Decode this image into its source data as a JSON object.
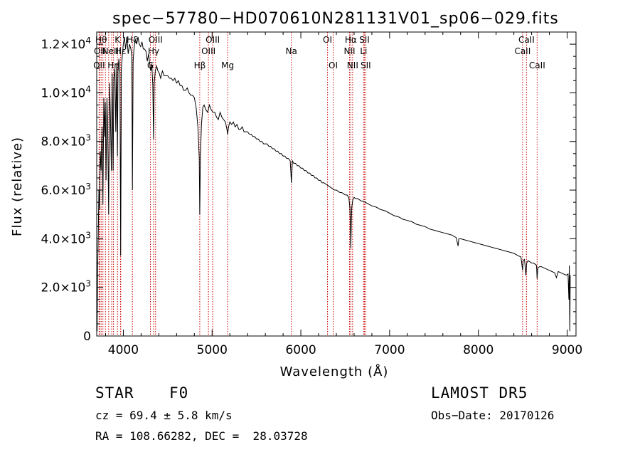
{
  "chart_data": {
    "type": "line",
    "title": "spec−57780−HD070610N281131V01_sp06−029.fits",
    "xlabel": "Wavelength (Å)",
    "ylabel": "Flux (relative)",
    "xlim": [
      3700,
      9100
    ],
    "ylim": [
      0,
      12500
    ],
    "x_ticks": [
      4000,
      5000,
      6000,
      7000,
      8000,
      9000
    ],
    "x_tick_labels": [
      "4000",
      "5000",
      "6000",
      "7000",
      "8000",
      "9000"
    ],
    "y_ticks": [
      0,
      2000,
      4000,
      6000,
      8000,
      10000,
      12000
    ],
    "y_tick_labels": [
      {
        "m": "0",
        "e": ""
      },
      {
        "m": "2.0×10",
        "e": "3"
      },
      {
        "m": "4.0×10",
        "e": "3"
      },
      {
        "m": "6.0×10",
        "e": "3"
      },
      {
        "m": "8.0×10",
        "e": "3"
      },
      {
        "m": "1.0×10",
        "e": "4"
      },
      {
        "m": "1.2×10",
        "e": "4"
      }
    ],
    "series": [
      {
        "color": "#000000",
        "points": [
          [
            3700,
            1400
          ],
          [
            3705,
            200
          ],
          [
            3710,
            2600
          ],
          [
            3718,
            4200
          ],
          [
            3725,
            6000
          ],
          [
            3732,
            5200
          ],
          [
            3740,
            7600
          ],
          [
            3750,
            6800
          ],
          [
            3760,
            8600
          ],
          [
            3770,
            5400
          ],
          [
            3780,
            9800
          ],
          [
            3790,
            8200
          ],
          [
            3797,
            9600
          ],
          [
            3805,
            6400
          ],
          [
            3815,
            9800
          ],
          [
            3825,
            8200
          ],
          [
            3835,
            5000
          ],
          [
            3845,
            10400
          ],
          [
            3855,
            9000
          ],
          [
            3865,
            6800
          ],
          [
            3875,
            10800
          ],
          [
            3885,
            6800
          ],
          [
            3893,
            10600
          ],
          [
            3905,
            11000
          ],
          [
            3915,
            8400
          ],
          [
            3925,
            11200
          ],
          [
            3933,
            7400
          ],
          [
            3940,
            11000
          ],
          [
            3950,
            11400
          ],
          [
            3962,
            10800
          ],
          [
            3970,
            3300
          ],
          [
            3978,
            11000
          ],
          [
            3990,
            11600
          ],
          [
            4000,
            12000
          ],
          [
            4012,
            12300
          ],
          [
            4025,
            11800
          ],
          [
            4040,
            12300
          ],
          [
            4055,
            11600
          ],
          [
            4070,
            12000
          ],
          [
            4085,
            11800
          ],
          [
            4096,
            11500
          ],
          [
            4102,
            6000
          ],
          [
            4110,
            11300
          ],
          [
            4120,
            11800
          ],
          [
            4135,
            12200
          ],
          [
            4150,
            12000
          ],
          [
            4165,
            12300
          ],
          [
            4180,
            12000
          ],
          [
            4195,
            11900
          ],
          [
            4210,
            12100
          ],
          [
            4225,
            11800
          ],
          [
            4240,
            11800
          ],
          [
            4255,
            11700
          ],
          [
            4270,
            11300
          ],
          [
            4285,
            11600
          ],
          [
            4300,
            11100
          ],
          [
            4310,
            10900
          ],
          [
            4320,
            11200
          ],
          [
            4332,
            10300
          ],
          [
            4340,
            8100
          ],
          [
            4348,
            10400
          ],
          [
            4360,
            10900
          ],
          [
            4375,
            11100
          ],
          [
            4390,
            10900
          ],
          [
            4405,
            10800
          ],
          [
            4420,
            10600
          ],
          [
            4440,
            10900
          ],
          [
            4460,
            10700
          ],
          [
            4480,
            10700
          ],
          [
            4500,
            10700
          ],
          [
            4520,
            10600
          ],
          [
            4540,
            10600
          ],
          [
            4560,
            10500
          ],
          [
            4580,
            10600
          ],
          [
            4600,
            10400
          ],
          [
            4620,
            10500
          ],
          [
            4640,
            10300
          ],
          [
            4660,
            10300
          ],
          [
            4680,
            10100
          ],
          [
            4700,
            10100
          ],
          [
            4720,
            10200
          ],
          [
            4740,
            10000
          ],
          [
            4760,
            9900
          ],
          [
            4780,
            9900
          ],
          [
            4800,
            9800
          ],
          [
            4820,
            9400
          ],
          [
            4840,
            8600
          ],
          [
            4855,
            7300
          ],
          [
            4861,
            5000
          ],
          [
            4868,
            7400
          ],
          [
            4880,
            8700
          ],
          [
            4895,
            9400
          ],
          [
            4910,
            9500
          ],
          [
            4930,
            9300
          ],
          [
            4950,
            9200
          ],
          [
            4970,
            9500
          ],
          [
            4990,
            9300
          ],
          [
            5010,
            9200
          ],
          [
            5030,
            9200
          ],
          [
            5050,
            9000
          ],
          [
            5070,
            8900
          ],
          [
            5090,
            9200
          ],
          [
            5110,
            9000
          ],
          [
            5130,
            8900
          ],
          [
            5150,
            8800
          ],
          [
            5167,
            8500
          ],
          [
            5175,
            8300
          ],
          [
            5185,
            8600
          ],
          [
            5200,
            8800
          ],
          [
            5220,
            8700
          ],
          [
            5240,
            8800
          ],
          [
            5260,
            8600
          ],
          [
            5280,
            8700
          ],
          [
            5300,
            8500
          ],
          [
            5320,
            8500
          ],
          [
            5340,
            8600
          ],
          [
            5360,
            8400
          ],
          [
            5380,
            8400
          ],
          [
            5400,
            8400
          ],
          [
            5420,
            8300
          ],
          [
            5440,
            8300
          ],
          [
            5460,
            8200
          ],
          [
            5480,
            8200
          ],
          [
            5500,
            8100
          ],
          [
            5520,
            8100
          ],
          [
            5540,
            8000
          ],
          [
            5560,
            8000
          ],
          [
            5580,
            7900
          ],
          [
            5600,
            7900
          ],
          [
            5620,
            7900
          ],
          [
            5640,
            7800
          ],
          [
            5660,
            7800
          ],
          [
            5680,
            7700
          ],
          [
            5700,
            7700
          ],
          [
            5720,
            7600
          ],
          [
            5740,
            7600
          ],
          [
            5760,
            7500
          ],
          [
            5780,
            7500
          ],
          [
            5800,
            7400
          ],
          [
            5820,
            7400
          ],
          [
            5840,
            7300
          ],
          [
            5860,
            7300
          ],
          [
            5880,
            7200
          ],
          [
            5888,
            6700
          ],
          [
            5893,
            6300
          ],
          [
            5898,
            6600
          ],
          [
            5905,
            7200
          ],
          [
            5920,
            7100
          ],
          [
            5940,
            7100
          ],
          [
            5960,
            7000
          ],
          [
            5980,
            7000
          ],
          [
            6000,
            6900
          ],
          [
            6020,
            6900
          ],
          [
            6040,
            6800
          ],
          [
            6060,
            6800
          ],
          [
            6080,
            6700
          ],
          [
            6100,
            6700
          ],
          [
            6120,
            6600
          ],
          [
            6140,
            6600
          ],
          [
            6160,
            6500
          ],
          [
            6180,
            6500
          ],
          [
            6200,
            6400
          ],
          [
            6220,
            6400
          ],
          [
            6240,
            6300
          ],
          [
            6260,
            6300
          ],
          [
            6280,
            6250
          ],
          [
            6300,
            6200
          ],
          [
            6320,
            6150
          ],
          [
            6340,
            6100
          ],
          [
            6360,
            6050
          ],
          [
            6380,
            6000
          ],
          [
            6400,
            6000
          ],
          [
            6420,
            5950
          ],
          [
            6440,
            5900
          ],
          [
            6460,
            5900
          ],
          [
            6480,
            5850
          ],
          [
            6500,
            5800
          ],
          [
            6520,
            5800
          ],
          [
            6540,
            5700
          ],
          [
            6552,
            5300
          ],
          [
            6558,
            4600
          ],
          [
            6563,
            3600
          ],
          [
            6568,
            4600
          ],
          [
            6574,
            5300
          ],
          [
            6585,
            5600
          ],
          [
            6600,
            5700
          ],
          [
            6620,
            5650
          ],
          [
            6640,
            5650
          ],
          [
            6660,
            5600
          ],
          [
            6680,
            5550
          ],
          [
            6700,
            5550
          ],
          [
            6750,
            5450
          ],
          [
            6800,
            5350
          ],
          [
            6850,
            5300
          ],
          [
            6900,
            5200
          ],
          [
            6950,
            5150
          ],
          [
            7000,
            5050
          ],
          [
            7050,
            4950
          ],
          [
            7100,
            4900
          ],
          [
            7150,
            4800
          ],
          [
            7200,
            4750
          ],
          [
            7250,
            4700
          ],
          [
            7300,
            4600
          ],
          [
            7350,
            4550
          ],
          [
            7400,
            4500
          ],
          [
            7450,
            4400
          ],
          [
            7500,
            4350
          ],
          [
            7550,
            4300
          ],
          [
            7600,
            4250
          ],
          [
            7650,
            4200
          ],
          [
            7700,
            4150
          ],
          [
            7750,
            4050
          ],
          [
            7772,
            3700
          ],
          [
            7780,
            4000
          ],
          [
            7800,
            4000
          ],
          [
            7850,
            3950
          ],
          [
            7900,
            3900
          ],
          [
            7950,
            3850
          ],
          [
            8000,
            3800
          ],
          [
            8050,
            3750
          ],
          [
            8100,
            3700
          ],
          [
            8150,
            3650
          ],
          [
            8200,
            3600
          ],
          [
            8250,
            3550
          ],
          [
            8300,
            3500
          ],
          [
            8350,
            3450
          ],
          [
            8400,
            3400
          ],
          [
            8450,
            3300
          ],
          [
            8480,
            3250
          ],
          [
            8498,
            2700
          ],
          [
            8505,
            3100
          ],
          [
            8520,
            3150
          ],
          [
            8535,
            2500
          ],
          [
            8545,
            3000
          ],
          [
            8560,
            3100
          ],
          [
            8580,
            3050
          ],
          [
            8600,
            3000
          ],
          [
            8620,
            3000
          ],
          [
            8640,
            2950
          ],
          [
            8655,
            2900
          ],
          [
            8662,
            2350
          ],
          [
            8670,
            2800
          ],
          [
            8690,
            2850
          ],
          [
            8710,
            2850
          ],
          [
            8740,
            2800
          ],
          [
            8770,
            2750
          ],
          [
            8800,
            2700
          ],
          [
            8830,
            2650
          ],
          [
            8860,
            2600
          ],
          [
            8880,
            2400
          ],
          [
            8900,
            2650
          ],
          [
            8930,
            2600
          ],
          [
            8960,
            2550
          ],
          [
            8990,
            2500
          ],
          [
            9010,
            2550
          ],
          [
            9020,
            1500
          ],
          [
            9025,
            2900
          ],
          [
            9030,
            200
          ],
          [
            9035,
            2500
          ]
        ]
      }
    ],
    "lines": [
      {
        "w": 3727,
        "label": "OII",
        "row": 3
      },
      {
        "w": 3734,
        "label": "OII",
        "row": 2
      },
      {
        "w": 3750,
        "label": "Hθ",
        "row": 1
      },
      {
        "w": 3770,
        "label": "",
        "row": 0
      },
      {
        "w": 3798,
        "label": "",
        "row": 0
      },
      {
        "w": 3835,
        "label": "",
        "row": 0
      },
      {
        "w": 3869,
        "label": "NeIII",
        "row": 2
      },
      {
        "w": 3889,
        "label": "Hη",
        "row": 3
      },
      {
        "w": 3934,
        "label": "K",
        "row": 1
      },
      {
        "w": 3969,
        "label": "",
        "row": 0
      },
      {
        "w": 3970,
        "label": "Hε",
        "row": 2
      },
      {
        "w": 4102,
        "label": "Hδ",
        "row": 1
      },
      {
        "w": 4305,
        "label": "G",
        "row": 3
      },
      {
        "w": 4341,
        "label": "Hγ",
        "row": 2
      },
      {
        "w": 4363,
        "label": "OIII",
        "row": 1
      },
      {
        "w": 4861,
        "label": "Hβ",
        "row": 3
      },
      {
        "w": 4959,
        "label": "OIII",
        "row": 2
      },
      {
        "w": 5007,
        "label": "OIII",
        "row": 1
      },
      {
        "w": 5175,
        "label": "Mg",
        "row": 3
      },
      {
        "w": 5893,
        "label": "Na",
        "row": 2
      },
      {
        "w": 6300,
        "label": "OI",
        "row": 1
      },
      {
        "w": 6364,
        "label": "OI",
        "row": 3
      },
      {
        "w": 6548,
        "label": "NII",
        "row": 2
      },
      {
        "w": 6563,
        "label": "Hα",
        "row": 1
      },
      {
        "w": 6583,
        "label": "NII",
        "row": 3
      },
      {
        "w": 6707,
        "label": "Li",
        "row": 2
      },
      {
        "w": 6716,
        "label": "SII",
        "row": 1
      },
      {
        "w": 6731,
        "label": "SII",
        "row": 3
      },
      {
        "w": 8498,
        "label": "CaII",
        "row": 2
      },
      {
        "w": 8542,
        "label": "CaII",
        "row": 1
      },
      {
        "w": 8662,
        "label": "CaII",
        "row": 3
      }
    ]
  },
  "info": {
    "class_label": "STAR",
    "subclass": "F0",
    "survey": "LAMOST DR5",
    "cz": "cz = 69.4 ± 5.8 km/s",
    "obs_date": "Obs−Date: 20170126",
    "coords": "RA = 108.66282, DEC =  28.03728"
  }
}
